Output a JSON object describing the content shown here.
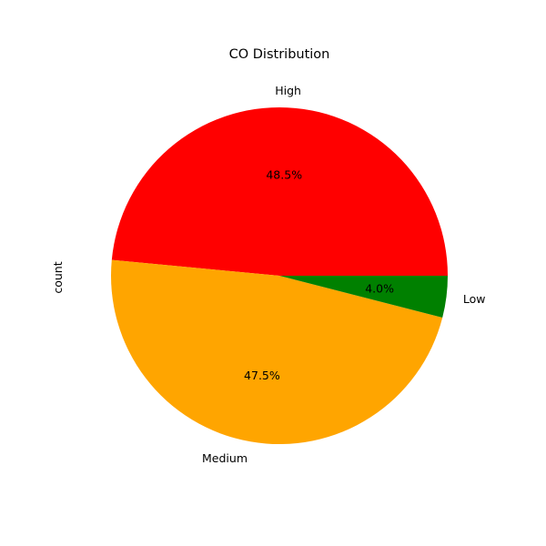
{
  "chart_data": {
    "type": "pie",
    "title": "CO Distribution",
    "ylabel": "count",
    "slices": [
      {
        "label": "High",
        "percent": 48.5,
        "pct_label": "48.5%",
        "color": "#ff0000"
      },
      {
        "label": "Medium",
        "percent": 47.5,
        "pct_label": "47.5%",
        "color": "#ffa500"
      },
      {
        "label": "Low",
        "percent": 4.0,
        "pct_label": "4.0%",
        "color": "#008000"
      }
    ]
  }
}
